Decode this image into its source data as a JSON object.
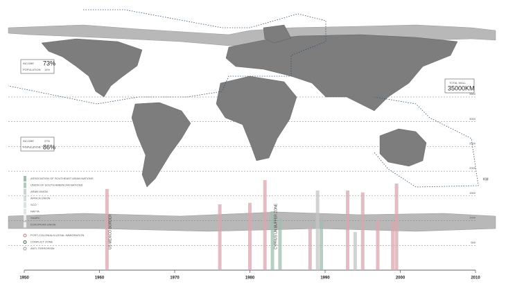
{
  "chart_data": {
    "type": "bar",
    "x_label": "",
    "y_label": "KM",
    "x": [
      1961,
      1976,
      1980,
      1982,
      1983,
      1984,
      1988,
      1989,
      1989.5,
      1993,
      1994,
      1995,
      1997,
      1999,
      1999.5
    ],
    "values": [
      1640,
      1330,
      1360,
      1820,
      1190,
      1050,
      840,
      1610,
      1050,
      1610,
      770,
      1570,
      1010,
      980,
      1750
    ],
    "bar_labels": [
      "US MEXICO BORDER",
      null,
      null,
      null,
      "CYPRUS UN BUFFER ZONE",
      null,
      null,
      null,
      null,
      null,
      null,
      null,
      null,
      null,
      null
    ],
    "colors": [
      "#d9a7b0",
      "#d9a7b0",
      "#d9a7b0",
      "#d9a7b0",
      "#9fbfae",
      "#9fbfae",
      "#d9a7b0",
      "#c4c4c4",
      "#9fbfae",
      "#d9a7b0",
      "#c4c4c4",
      "#d9a7b0",
      "#d9a7b0",
      "#d9a7b0",
      "#d9a7b0"
    ],
    "xlim": [
      1950,
      2010
    ],
    "xticks": [
      1950,
      1960,
      1970,
      1980,
      1990,
      2000,
      2010
    ],
    "ylim": [
      0,
      3500
    ],
    "yticks": [
      500,
      1000,
      1500,
      2000,
      2500,
      3000,
      3500
    ],
    "grid": true,
    "legend": [
      {
        "name": "ASSOCIATION OF SOUTHEAST ASIAN NATIONS",
        "color": "#9fbfae"
      },
      {
        "name": "UNION OF SOUTH AMERICAN NATIONS",
        "color": "#b5c9be"
      },
      {
        "name": "ARAB UNION",
        "color": "#c8d6ce"
      },
      {
        "name": "AFRICA UNION",
        "color": "#d5ddd8"
      },
      {
        "name": "SCO",
        "color": "#dde3df"
      },
      {
        "name": "NAFTA",
        "color": "#e3e7e4"
      },
      {
        "name": "SAARC",
        "color": "#e8ebe9"
      },
      {
        "name": "EUROPEAN UNION",
        "color": "#eeeeee"
      },
      {
        "name": "POST-COLONIAL/ILLEGAL IMMIGRATION",
        "color": "#c0707f"
      },
      {
        "name": "CONFLICT ZONE",
        "color": "#3f6a50"
      },
      {
        "name": "ANTI-TERRORISM",
        "color": "#999999"
      }
    ]
  },
  "stats": [
    {
      "income_label": "INCOME",
      "income": "73%",
      "population_label": "POPULATION",
      "population": "14%"
    },
    {
      "income_label": "INCOME",
      "income": "27%",
      "population_label": "POPULATION",
      "population": "86%"
    },
    {
      "label": "TOTAL WALL",
      "value": "35000KM"
    }
  ]
}
